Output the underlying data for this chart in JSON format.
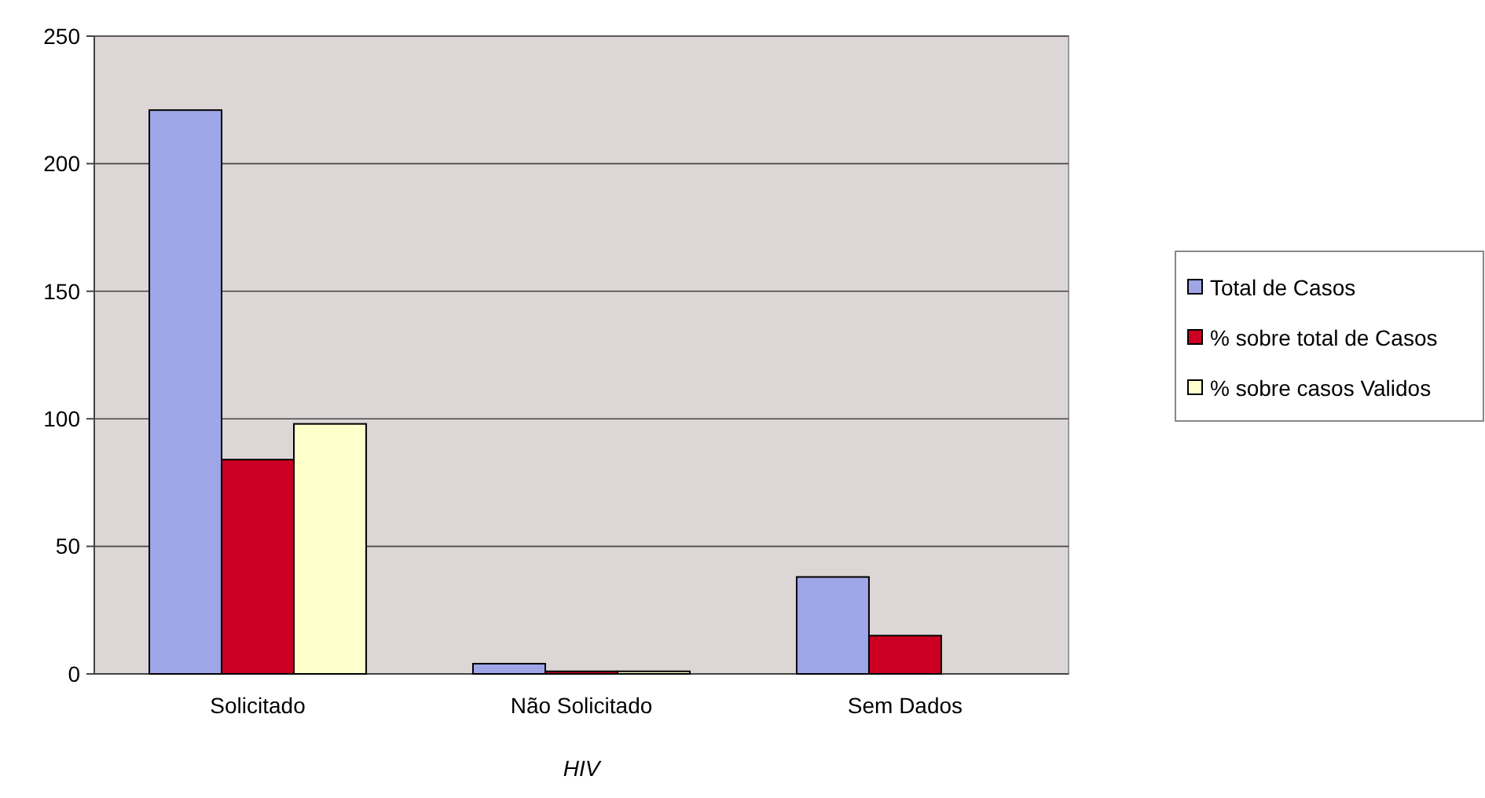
{
  "chart_data": {
    "type": "bar",
    "xlabel": "HIV",
    "categories": [
      "Solicitado",
      "Não Solicitado",
      "Sem Dados"
    ],
    "series": [
      {
        "name": "Total de Casos",
        "color": "#9fa6e8",
        "values": [
          221,
          4,
          38
        ]
      },
      {
        "name": "% sobre total de Casos",
        "color": "#cc0022",
        "values": [
          84,
          1,
          15
        ]
      },
      {
        "name": "% sobre casos Validos",
        "color": "#ffffcc",
        "values": [
          98,
          1,
          null
        ]
      }
    ],
    "ylim": [
      0,
      250
    ],
    "yticks": [
      0,
      50,
      100,
      150,
      200,
      250
    ],
    "grid": "y",
    "legend": "right"
  }
}
